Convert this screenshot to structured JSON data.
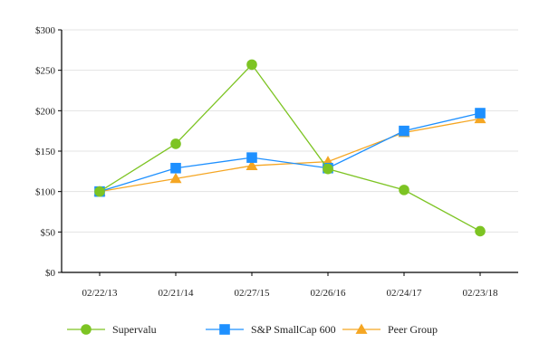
{
  "chart_data": {
    "type": "line",
    "title": "",
    "xlabel": "",
    "ylabel": "",
    "categories": [
      "02/22/13",
      "02/21/14",
      "02/27/15",
      "02/26/16",
      "02/24/17",
      "02/23/18"
    ],
    "ylim": [
      0,
      300
    ],
    "yticks": [
      0,
      50,
      100,
      150,
      200,
      250,
      300
    ],
    "ytick_labels": [
      "$0",
      "$50",
      "$100",
      "$150",
      "$200",
      "$250",
      "$300"
    ],
    "grid": true,
    "legend_position": "bottom",
    "series": [
      {
        "name": "Supervalu",
        "marker": "circle",
        "color": "#7dc423",
        "values": [
          100,
          159,
          257,
          128,
          102,
          51
        ]
      },
      {
        "name": "S&P SmallCap 600",
        "marker": "square",
        "color": "#1e90ff",
        "values": [
          100,
          129,
          142,
          129,
          175,
          197
        ]
      },
      {
        "name": "Peer Group",
        "marker": "triangle",
        "color": "#f5a623",
        "values": [
          100,
          116,
          132,
          137,
          173,
          190
        ]
      }
    ]
  }
}
